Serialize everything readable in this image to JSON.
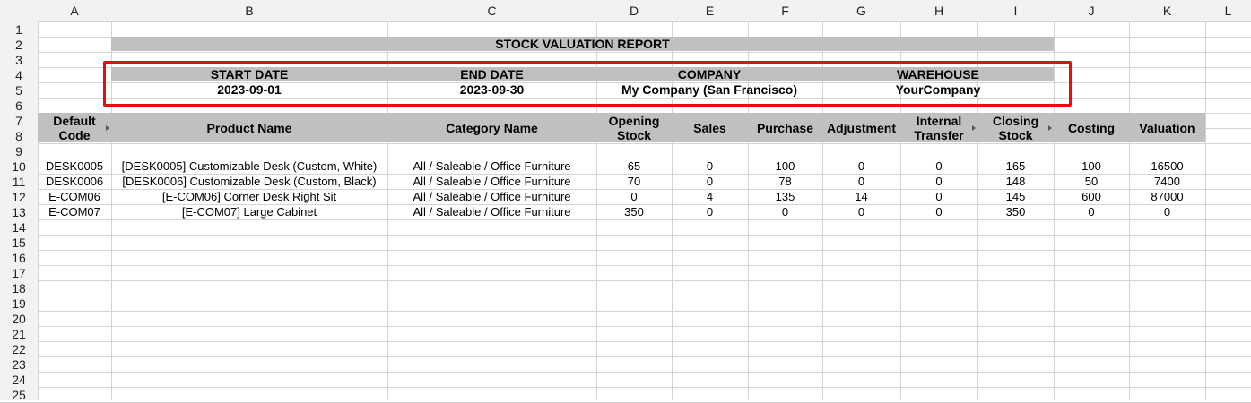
{
  "column_headers": [
    "A",
    "B",
    "C",
    "D",
    "E",
    "F",
    "G",
    "H",
    "I",
    "J",
    "K",
    "L"
  ],
  "row_headers": [
    "1",
    "2",
    "3",
    "4",
    "5",
    "6",
    "7",
    "8",
    "9",
    "10",
    "11",
    "12",
    "13",
    "14",
    "15",
    "16",
    "17",
    "18",
    "19",
    "20",
    "21",
    "22",
    "23",
    "24",
    "25"
  ],
  "report": {
    "title": "STOCK VALUATION REPORT",
    "labels": {
      "start_date": "START DATE",
      "end_date": "END DATE",
      "company": "COMPANY",
      "warehouse": "WAREHOUSE"
    },
    "values": {
      "start_date": "2023-09-01",
      "end_date": "2023-09-30",
      "company": "My Company (San Francisco)",
      "warehouse": "YourCompany"
    }
  },
  "table": {
    "headers": [
      "Default Code",
      "Product Name",
      "Category Name",
      "Opening Stock",
      "Sales",
      "Purchase",
      "Adjustment",
      "Internal Transfer",
      "Closing Stock",
      "Costing",
      "Valuation"
    ],
    "rows": [
      [
        "DESK0005",
        "[DESK0005] Customizable Desk (Custom, White)",
        "All / Saleable / Office Furniture",
        "65",
        "0",
        "100",
        "0",
        "0",
        "165",
        "100",
        "16500"
      ],
      [
        "DESK0006",
        "[DESK0006] Customizable Desk (Custom, Black)",
        "All / Saleable / Office Furniture",
        "70",
        "0",
        "78",
        "0",
        "0",
        "148",
        "50",
        "7400"
      ],
      [
        "E-COM06",
        "[E-COM06] Corner Desk Right Sit",
        "All / Saleable / Office Furniture",
        "0",
        "4",
        "135",
        "14",
        "0",
        "145",
        "600",
        "87000"
      ],
      [
        "E-COM07",
        "[E-COM07] Large Cabinet",
        "All / Saleable / Office Furniture",
        "350",
        "0",
        "0",
        "0",
        "0",
        "350",
        "0",
        "0"
      ]
    ]
  },
  "colors": {
    "header_fill": "#c0c0c0",
    "selection_border": "#e01010",
    "gridline": "#d4d4d4"
  }
}
